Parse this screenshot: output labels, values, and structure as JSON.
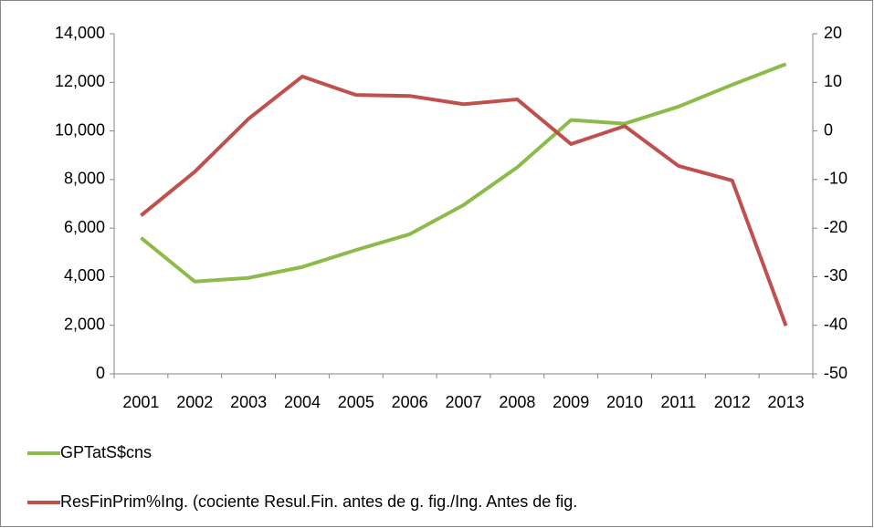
{
  "chart_data": {
    "type": "line",
    "categories": [
      "2001",
      "2002",
      "2003",
      "2004",
      "2005",
      "2006",
      "2007",
      "2008",
      "2009",
      "2010",
      "2011",
      "2012",
      "2013"
    ],
    "series": [
      {
        "name": "GPTatS$cns",
        "color": "#8cbb4b",
        "values": [
          5600,
          3800,
          3950,
          4400,
          5100,
          5750,
          6950,
          8500,
          10450,
          10300,
          11000,
          11900,
          12750
        ]
      },
      {
        "name": "ResFinPrim%Ing. (cociente Resul.Fin. antes de g. fig./Ing. Antes de fig.",
        "color": "#c0504d",
        "axis": "y2",
        "values": [
          -17.4,
          -8.4,
          2.5,
          11.2,
          7.4,
          7.2,
          5.5,
          6.5,
          -2.7,
          1.0,
          -7.2,
          -10.2,
          -40.1
        ]
      }
    ],
    "ylim": [
      0,
      14000
    ],
    "yticks": [
      0,
      {
        "value": 2000,
        "label": "2,000"
      },
      {
        "value": 4000,
        "label": "4,000"
      },
      {
        "value": 6000,
        "label": "6,000"
      },
      {
        "value": 8000,
        "label": "8,000"
      },
      {
        "value": 10000,
        "label": "10,000"
      },
      {
        "value": 12000,
        "label": "12,000"
      },
      {
        "value": 14000,
        "label": "14,000"
      }
    ],
    "y2lim": [
      -50,
      20
    ],
    "y2ticks": [
      -50,
      -40,
      -30,
      -20,
      -10,
      0,
      10,
      20
    ],
    "legend": "bottom"
  }
}
